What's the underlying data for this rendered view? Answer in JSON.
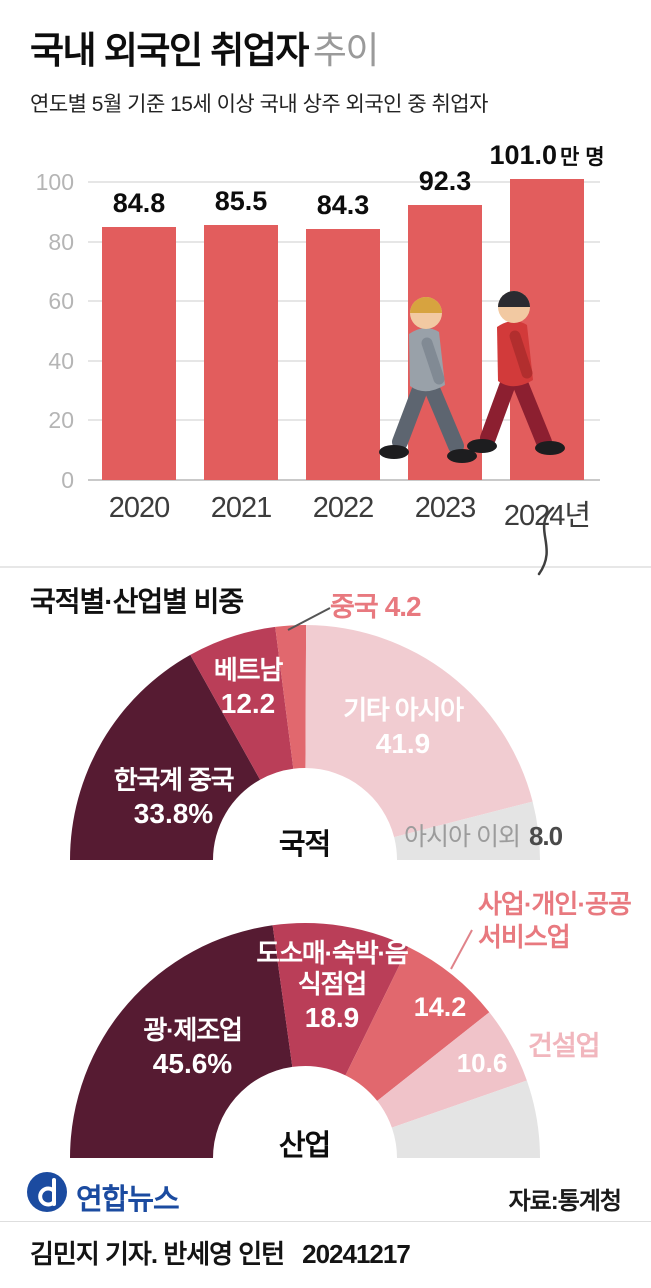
{
  "header": {
    "title": "국내 외국인 취업자",
    "title_suffix": "추이",
    "subtitle": "연도별 5월 기준 15세 이상 국내 상주 외국인 중 취업자"
  },
  "section2_title": "국적별·산업별 비중",
  "chart_data": [
    {
      "type": "bar",
      "title": "국내 외국인 취업자 추이",
      "categories": [
        "2020",
        "2021",
        "2022",
        "2023",
        "2024년"
      ],
      "values": [
        84.8,
        85.5,
        84.3,
        92.3,
        101.0
      ],
      "value_labels": [
        "84.8",
        "85.5",
        "84.3",
        "92.3",
        "101.0"
      ],
      "last_value_unit": "만 명",
      "ylim": [
        0,
        100
      ],
      "yticks": [
        "0",
        "20",
        "40",
        "60",
        "80",
        "100"
      ],
      "bar_color": "#e25d5d",
      "grid": true,
      "legend": "none"
    },
    {
      "type": "pie",
      "variant": "semicircle-donut",
      "center_label": "국적",
      "slices": [
        {
          "label": "한국계 중국",
          "value": 33.8,
          "display": "33.8%",
          "color": "#561b32"
        },
        {
          "label": "베트남",
          "value": 12.2,
          "display": "12.2",
          "color": "#ba3e58"
        },
        {
          "label": "중국",
          "value": 4.2,
          "display": "4.2",
          "color": "#e1686e"
        },
        {
          "label": "기타 아시아",
          "value": 41.9,
          "display": "41.9",
          "color": "#f1ccd1"
        },
        {
          "label": "아시아 이외",
          "value": 8.0,
          "display": "8.0",
          "color": "#e4e4e4"
        }
      ]
    },
    {
      "type": "pie",
      "variant": "semicircle-donut",
      "center_label": "산업",
      "slices": [
        {
          "label": "광·제조업",
          "value": 45.6,
          "display": "45.6%",
          "color": "#561b32"
        },
        {
          "label": "도소매·숙박·음식점업",
          "value": 18.9,
          "display": "18.9",
          "color": "#ba3e58"
        },
        {
          "label": "사업·개인·공공서비스업",
          "value": 14.2,
          "display": "14.2",
          "color": "#e1686e"
        },
        {
          "label": "건설업",
          "value": 10.6,
          "display": "10.6",
          "color": "#f0c3c9"
        },
        {
          "label": "",
          "value": 10.7,
          "display": "",
          "color": "#e4e4e4"
        }
      ]
    }
  ],
  "footer": {
    "logo": "연합뉴스",
    "logo_color": "#1b4ba0",
    "source": "자료:통계청",
    "byline": "김민지 기자. 반세영 인턴",
    "date": "20241217"
  }
}
